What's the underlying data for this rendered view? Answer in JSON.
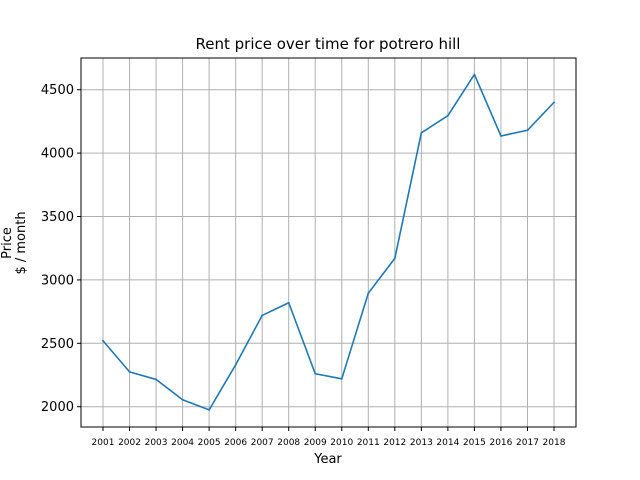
{
  "chart_data": {
    "type": "line",
    "title": "Rent price over time for potrero hill",
    "xlabel": "Year",
    "ylabel": [
      "Price",
      "$ / month"
    ],
    "x": [
      "2001",
      "2002",
      "2003",
      "2004",
      "2005",
      "2006",
      "2007",
      "2008",
      "2009",
      "2010",
      "2011",
      "2012",
      "2013",
      "2014",
      "2015",
      "2016",
      "2017",
      "2018"
    ],
    "series": [
      {
        "values": [
          2520,
          2275,
          2215,
          2055,
          1975,
          2330,
          2720,
          2820,
          2260,
          2220,
          2895,
          3170,
          4160,
          4295,
          4620,
          4135,
          4180,
          4400
        ],
        "color": "#1f77b4"
      }
    ],
    "yticks": [
      2000,
      2500,
      3000,
      3500,
      4000,
      4500
    ],
    "ylim": [
      1840,
      4750
    ],
    "grid": true,
    "colors": {
      "grid": "#b0b0b0",
      "axis": "#000000"
    }
  }
}
